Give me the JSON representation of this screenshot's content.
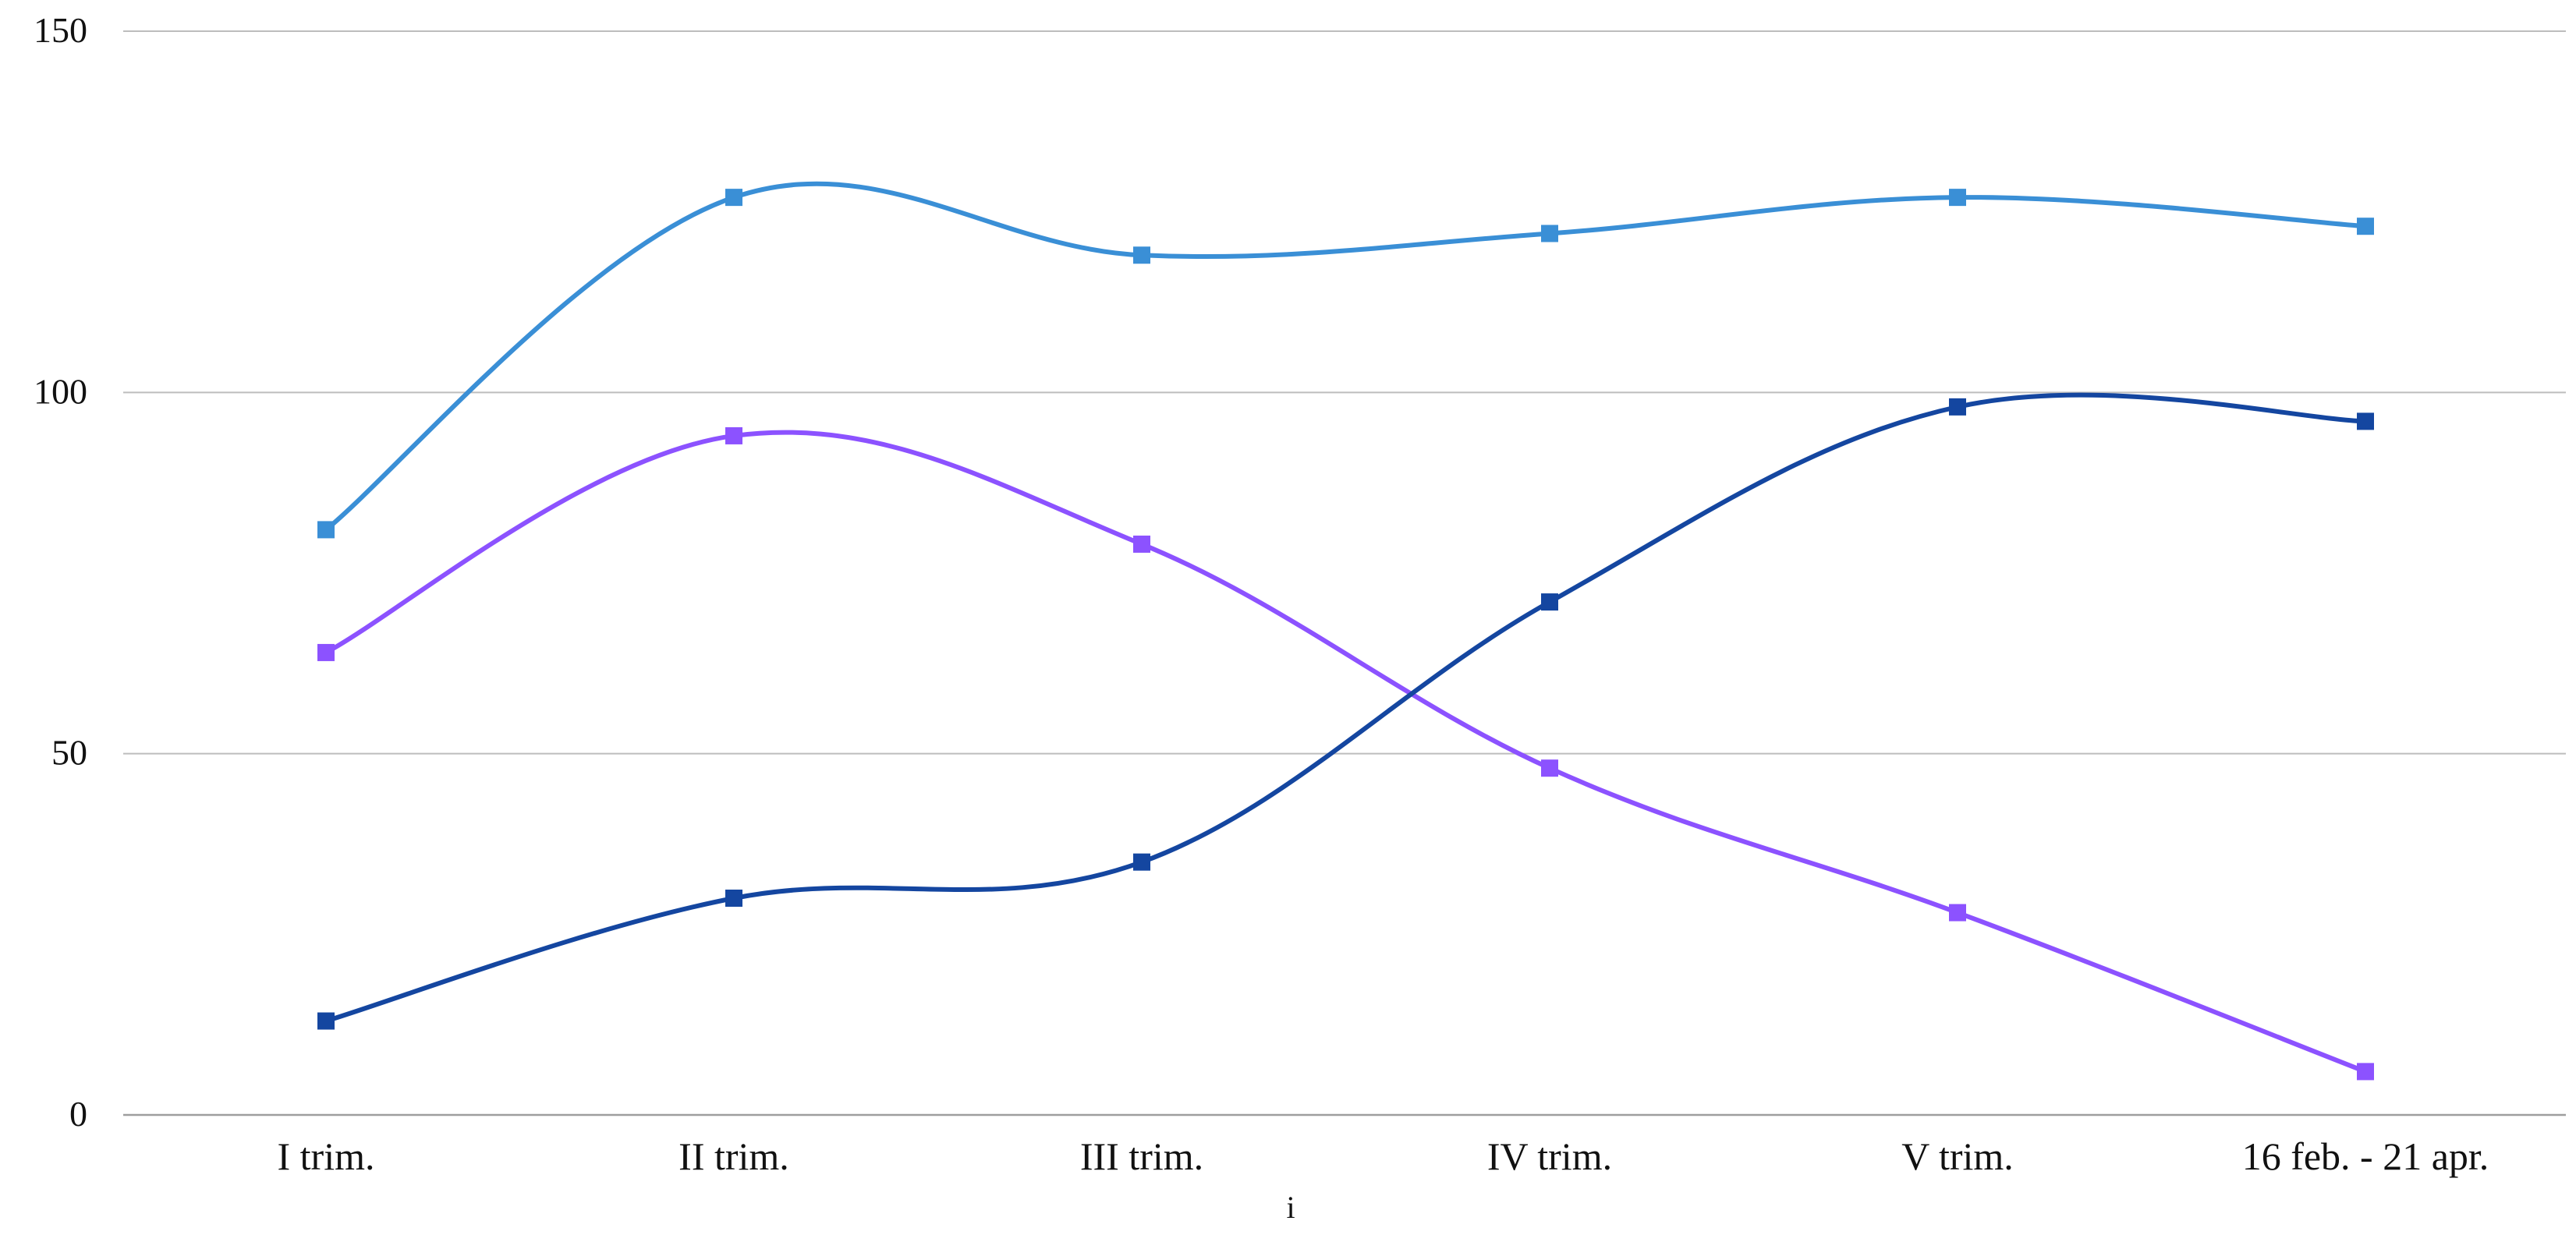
{
  "chart_data": {
    "type": "line",
    "title": "",
    "xlabel": "i",
    "ylabel": "",
    "ylim": [
      0,
      150
    ],
    "yticks": [
      0,
      50,
      100,
      150
    ],
    "grid": true,
    "legend": "none",
    "smooth": true,
    "categories": [
      "I trim.",
      "II trim.",
      "III trim.",
      "IV trim.",
      "V trim.",
      "16 feb. - 21 apr."
    ],
    "series": [
      {
        "color": "#3a8fd6",
        "values": [
          81,
          127,
          119,
          122,
          127,
          123
        ]
      },
      {
        "color": "#8c52ff",
        "values": [
          64,
          94,
          79,
          48,
          28,
          6
        ]
      },
      {
        "color": "#1446a0",
        "values": [
          13,
          30,
          35,
          71,
          98,
          96
        ]
      }
    ]
  }
}
